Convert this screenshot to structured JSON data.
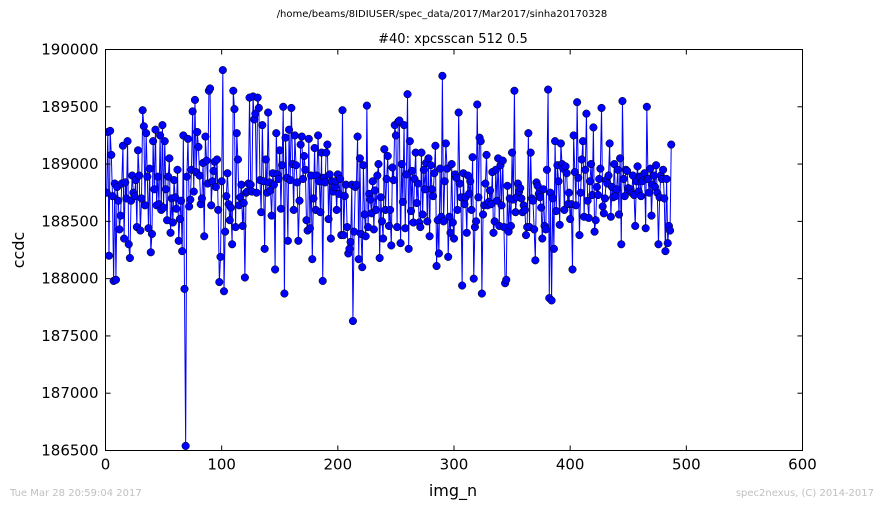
{
  "suptitle": "/home/beams/8IDIUSER/spec_data/2017/Mar2017/sinha20170328",
  "footer": {
    "timestamp": "Tue Mar 28 20:59:04 2017",
    "credit": "spec2nexus, (C) 2014-2017"
  },
  "chart_data": {
    "type": "line",
    "title": "#40: xpcsscan 512 0.5",
    "xlabel": "img_n",
    "ylabel": "ccdc",
    "xlim": [
      0,
      600
    ],
    "ylim": [
      186500,
      190000
    ],
    "xticks": [
      0,
      100,
      200,
      300,
      400,
      500,
      600
    ],
    "yticks": [
      186500,
      187000,
      187500,
      188000,
      188500,
      189000,
      189500,
      190000
    ],
    "grid": false,
    "series_color": "#0000ff",
    "marker": "circle",
    "series": [
      {
        "x_start": 1,
        "x_step": 1,
        "values": [
          188750,
          189280,
          188200,
          189290,
          189080,
          188720,
          187980,
          188830,
          187990,
          188800,
          188680,
          188430,
          188550,
          188830,
          189160,
          188350,
          188840,
          188700,
          189200,
          188300,
          188180,
          188680,
          188900,
          188750,
          188720,
          188860,
          188450,
          189120,
          188900,
          188420,
          188700,
          189470,
          189330,
          188640,
          189270,
          188890,
          188440,
          188960,
          188230,
          188390,
          189200,
          188780,
          189300,
          188640,
          188890,
          188650,
          189250,
          188600,
          189340,
          188620,
          189200,
          188780,
          188510,
          188890,
          189050,
          188400,
          188700,
          188490,
          188860,
          188710,
          188610,
          188950,
          188330,
          188520,
          188680,
          188240,
          189250,
          187910,
          186540,
          188890,
          189220,
          188630,
          188690,
          188950,
          189460,
          188760,
          189560,
          188930,
          189280,
          189150,
          188900,
          188650,
          188700,
          189010,
          188370,
          189240,
          189030,
          188830,
          189640,
          189660,
          188640,
          188850,
          188940,
          189020,
          188800,
          189040,
          188600,
          187970,
          188190,
          188850,
          189820,
          187890,
          188410,
          188720,
          188920,
          188650,
          188510,
          188620,
          188300,
          189640,
          189480,
          188450,
          189270,
          189040,
          188640,
          188710,
          188820,
          188460,
          188660,
          188010,
          188750,
          188760,
          188830,
          189580,
          188820,
          188760,
          189590,
          189390,
          189440,
          188750,
          189580,
          189490,
          188860,
          188580,
          189340,
          188850,
          188260,
          189040,
          188750,
          189450,
          188840,
          188770,
          188550,
          188920,
          188820,
          188080,
          189270,
          188910,
          188870,
          189120,
          188610,
          188990,
          189500,
          187870,
          189230,
          188880,
          188330,
          189300,
          188860,
          189490,
          189000,
          188600,
          189250,
          188990,
          188840,
          188330,
          188680,
          189170,
          189240,
          188870,
          189070,
          188950,
          188510,
          188420,
          189220,
          188440,
          188900,
          188170,
          188700,
          189140,
          188600,
          188900,
          189250,
          188850,
          188580,
          189100,
          187980,
          188880,
          188840,
          189100,
          189170,
          188520,
          188910,
          188350,
          188850,
          188760,
          188800,
          188850,
          188600,
          188910,
          188740,
          188870,
          188380,
          189470,
          188380,
          188720,
          188820,
          188450,
          188220,
          188260,
          188320,
          188820,
          187630,
          188410,
          188800,
          188820,
          189240,
          188170,
          189050,
          188390,
          188100,
          188990,
          188560,
          188370,
          189510,
          188450,
          188740,
          188690,
          188570,
          188850,
          188430,
          188770,
          188600,
          188900,
          189000,
          188180,
          188710,
          188500,
          188350,
          189130,
          188600,
          188870,
          189070,
          188460,
          188600,
          188290,
          188970,
          188860,
          189340,
          189250,
          188450,
          189370,
          189380,
          188310,
          189000,
          188670,
          189340,
          188440,
          188910,
          189610,
          188260,
          189200,
          188590,
          188940,
          188490,
          188870,
          189100,
          188660,
          188830,
          188490,
          188450,
          189100,
          188560,
          188950,
          188780,
          189010,
          188500,
          189050,
          188370,
          188990,
          188780,
          188720,
          188920,
          189160,
          188110,
          188510,
          188220,
          188960,
          188540,
          189770,
          188500,
          188850,
          189180,
          188960,
          188190,
          188540,
          188400,
          189000,
          188490,
          188350,
          188910,
          188880,
          188600,
          189450,
          188830,
          188710,
          187940,
          188920,
          188650,
          188710,
          188400,
          188900,
          188740,
          188850,
          188600,
          189060,
          188000,
          188450,
          188500,
          189520,
          188710,
          189230,
          189200,
          187870,
          188560,
          188640,
          188830,
          189080,
          188640,
          188670,
          188770,
          188650,
          188930,
          188400,
          188500,
          188950,
          188680,
          189050,
          188460,
          188990,
          188640,
          189030,
          188450,
          187960,
          187990,
          188810,
          188410,
          188700,
          188460,
          189100,
          188690,
          189640,
          188580,
          188710,
          188830,
          188760,
          188790,
          188700,
          188580,
          188640,
          188600,
          188380,
          188450,
          189270,
          188450,
          189100,
          188700,
          188680,
          188430,
          188160,
          188840,
          188810,
          188740,
          188710,
          188620,
          188350,
          188780,
          188460,
          188430,
          188950,
          189650,
          187830,
          188750,
          187810,
          188700,
          188260,
          189200,
          188590,
          188990,
          188850,
          188470,
          189180,
          189000,
          188960,
          188600,
          188980,
          188920,
          188650,
          188750,
          188520,
          188650,
          188080,
          189250,
          188930,
          188640,
          189540,
          188880,
          188380,
          188750,
          189040,
          189200,
          188540,
          188950,
          189440,
          188680,
          188530,
          188850,
          189000,
          188730,
          189320,
          188410,
          188510,
          188800,
          188730,
          188870,
          188960,
          189490,
          188630,
          188570,
          188700,
          188860,
          188830,
          188900,
          189180,
          188540,
          188800,
          188710,
          189000,
          188720,
          188780,
          188950,
          188560,
          189050,
          188300,
          189550,
          188870,
          188720,
          188950,
          188940,
          188790,
          188770,
          188780,
          188750,
          188900,
          188730,
          188460,
          188850,
          188980,
          188760,
          188890,
          188720,
          188850,
          188900,
          188920,
          188440,
          189500,
          188870,
          188750,
          188960,
          188550,
          188820,
          188900,
          188800,
          188990,
          188750,
          188300,
          188710,
          188900,
          188870,
          188950,
          188700,
          188240,
          188870,
          188310,
          188460,
          188420,
          189170
        ]
      }
    ]
  }
}
